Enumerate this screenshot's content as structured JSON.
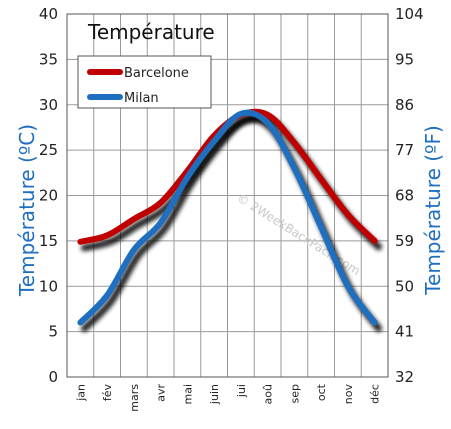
{
  "chart_data": {
    "type": "line",
    "title": "Température",
    "ylabel_left": "Température  (ºC)",
    "ylabel_right": "Température  (ºF)",
    "categories": [
      "jan",
      "fév",
      "mars",
      "avr",
      "mai",
      "juin",
      "jui",
      "aoû",
      "sep",
      "oct",
      "nov",
      "déc"
    ],
    "ylim": [
      0,
      40
    ],
    "yticks_left": [
      0,
      5,
      10,
      15,
      20,
      25,
      30,
      35,
      40
    ],
    "yticks_right": [
      "32",
      "41",
      "50",
      "59",
      "68",
      "77",
      "86",
      "95",
      "104"
    ],
    "grid": true,
    "legend_position": "top-left",
    "watermark": "© 2WeekBackPack.com",
    "series": [
      {
        "name": "Barcelone",
        "color": "#c00000",
        "values": [
          14.9,
          15.6,
          17.4,
          19.2,
          22.7,
          26.6,
          28.9,
          28.9,
          25.8,
          21.8,
          17.9,
          15.0
        ]
      },
      {
        "name": "Milan",
        "color": "#1f6fc0",
        "values": [
          6.0,
          9.0,
          14.0,
          17.0,
          22.0,
          26.0,
          29.0,
          28.0,
          23.0,
          16.5,
          10.0,
          6.0
        ]
      }
    ]
  }
}
